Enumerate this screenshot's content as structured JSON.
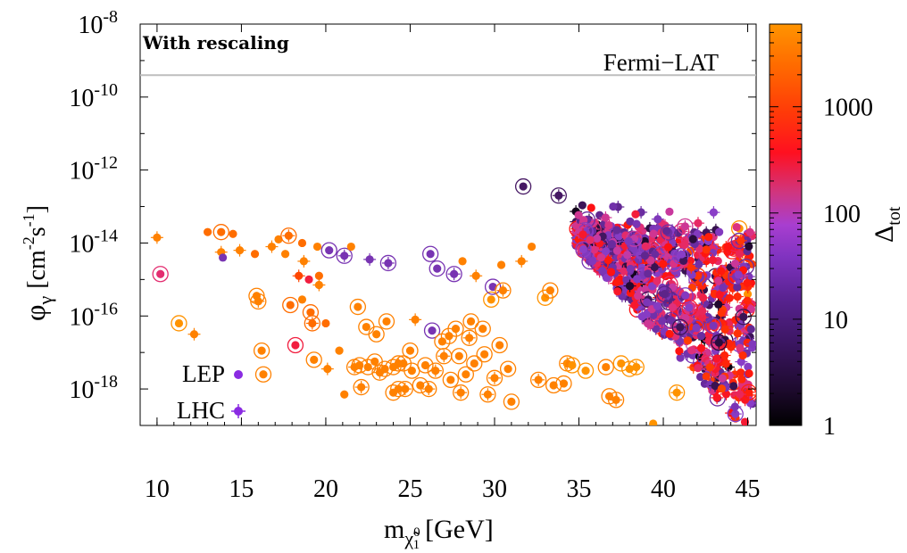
{
  "chart_data": {
    "type": "scatter",
    "title": "",
    "xlabel": "m",
    "xlabel_sub": "χ̃",
    "xlabel_sub_sup": "0",
    "xlabel_sub_sub": "1",
    "xlabel_unit": "[GeV]",
    "ylabel_phi": "φ",
    "ylabel_gamma": "γ",
    "ylabel_unit_open": "[cm",
    "ylabel_exp1": "-2",
    "ylabel_mid": "s",
    "ylabel_exp2": "-1",
    "ylabel_unit_close": "]",
    "xlim": [
      9,
      45.5
    ],
    "ylim_log10": [
      -19,
      -8
    ],
    "x_ticks": [
      "10",
      "15",
      "20",
      "25",
      "30",
      "35",
      "40",
      "45"
    ],
    "x_tick_values": [
      10,
      15,
      20,
      25,
      30,
      35,
      40,
      45
    ],
    "y_tick_base": "10",
    "y_tick_exps": [
      "-8",
      "-10",
      "-12",
      "-14",
      "-16",
      "-18"
    ],
    "y_tick_values": [
      -8,
      -10,
      -12,
      -14,
      -16,
      -18
    ],
    "annotation": "With rescaling",
    "reference_line": {
      "label": "Fermi−LAT",
      "log10_value": -9.4,
      "color": "#bbbbbb"
    },
    "legend": {
      "placement": "bottom-left",
      "entries": [
        {
          "label": "LEP",
          "marker": "dot"
        },
        {
          "label": "LHC",
          "marker": "dot-cross"
        }
      ]
    },
    "colorbar": {
      "label_base": "Δ",
      "label_sub": "tot",
      "scale": "log",
      "range": [
        1,
        6000
      ],
      "ticks": [
        "1",
        "10",
        "100",
        "1000"
      ],
      "tick_values": [
        1,
        10,
        100,
        1000
      ],
      "palette": [
        "#000000",
        "#2a0c3c",
        "#4b1a6b",
        "#6a2ca0",
        "#8a3ec8",
        "#b040c0",
        "#e0307a",
        "#ff1010",
        "#ff4a00",
        "#ff7a00",
        "#ff9a00"
      ]
    },
    "series": [
      {
        "name": "light-mass sparse points (orange)",
        "points": [
          [
            10.0,
            -13.85,
            3000,
            "lep",
            false
          ],
          [
            10.2,
            -14.85,
            200,
            "lep",
            true
          ],
          [
            11.3,
            -16.2,
            5000,
            "lep",
            true
          ],
          [
            12.2,
            -16.5,
            3000,
            "lep",
            false
          ],
          [
            13.0,
            -13.7,
            2000,
            "lep",
            false
          ],
          [
            13.8,
            -13.7,
            2000,
            "lep",
            true
          ],
          [
            13.8,
            -14.25,
            3000,
            "lep",
            false
          ],
          [
            13.9,
            -14.4,
            20,
            "lep",
            false
          ],
          [
            14.5,
            -13.75,
            2000,
            "lep",
            false
          ],
          [
            14.9,
            -14.2,
            3000,
            "lep",
            false
          ],
          [
            15.8,
            -14.3,
            2000,
            "lep",
            false
          ],
          [
            15.9,
            -15.45,
            3000,
            "lep",
            true
          ],
          [
            16.0,
            -15.6,
            3000,
            "lep",
            true
          ],
          [
            16.2,
            -16.95,
            3000,
            "lep",
            true
          ],
          [
            16.3,
            -17.6,
            3000,
            "lep",
            true
          ],
          [
            16.8,
            -14.1,
            3000,
            "lep",
            false
          ],
          [
            17.2,
            -13.9,
            3000,
            "lep",
            false
          ],
          [
            17.6,
            -14.3,
            3000,
            "lep",
            false
          ],
          [
            17.8,
            -13.8,
            2000,
            "lep",
            true
          ],
          [
            17.9,
            -15.7,
            2000,
            "lep",
            true
          ],
          [
            18.2,
            -16.8,
            300,
            "lep",
            true
          ],
          [
            18.4,
            -14.9,
            1000,
            "lep",
            false
          ],
          [
            18.6,
            -15.55,
            3000,
            "lep",
            false
          ],
          [
            18.6,
            -14.0,
            2000,
            "lep",
            false
          ],
          [
            18.7,
            -14.5,
            3000,
            "lep",
            false
          ],
          [
            19.0,
            -15.0,
            300,
            "lep",
            false
          ],
          [
            19.1,
            -15.9,
            2000,
            "lep",
            true
          ],
          [
            19.2,
            -16.2,
            2000,
            "lep",
            true
          ],
          [
            19.3,
            -17.2,
            3000,
            "lep",
            true
          ],
          [
            19.5,
            -14.1,
            3000,
            "lep",
            false
          ],
          [
            19.6,
            -15.15,
            3000,
            "lep",
            false
          ],
          [
            19.6,
            -14.9,
            2000,
            "lep",
            false
          ],
          [
            20.0,
            -16.2,
            2000,
            "lep",
            false
          ],
          [
            20.1,
            -17.45,
            3000,
            "lep",
            false
          ],
          [
            20.2,
            -14.2,
            20,
            "lep",
            true
          ],
          [
            20.8,
            -16.95,
            3000,
            "lep",
            false
          ],
          [
            21.1,
            -14.35,
            20,
            "lep",
            true
          ],
          [
            21.1,
            -18.15,
            3000,
            "lep",
            false
          ],
          [
            21.5,
            -14.1,
            3000,
            "lep",
            false
          ],
          [
            21.7,
            -17.4,
            3000,
            "lep",
            true
          ],
          [
            21.9,
            -15.75,
            3000,
            "lep",
            true
          ],
          [
            22.0,
            -17.35,
            3000,
            "lep",
            true
          ],
          [
            22.1,
            -17.95,
            3000,
            "lep",
            true
          ],
          [
            22.4,
            -16.3,
            3000,
            "lep",
            true
          ],
          [
            22.5,
            -17.4,
            3000,
            "lep",
            true
          ],
          [
            22.6,
            -14.45,
            20,
            "lep",
            false
          ],
          [
            22.9,
            -17.25,
            3000,
            "lep",
            true
          ],
          [
            23.0,
            -16.5,
            3000,
            "lep",
            true
          ],
          [
            23.2,
            -17.55,
            3000,
            "lep",
            true
          ],
          [
            23.5,
            -17.45,
            3000,
            "lep",
            true
          ],
          [
            23.6,
            -16.15,
            3000,
            "lep",
            true
          ],
          [
            23.7,
            -14.55,
            20,
            "lep",
            true
          ],
          [
            24.0,
            -17.4,
            3000,
            "lep",
            true
          ],
          [
            24.0,
            -18.1,
            3000,
            "lep",
            true
          ],
          [
            24.3,
            -17.3,
            3000,
            "lep",
            true
          ],
          [
            24.3,
            -18.0,
            3000,
            "lep",
            true
          ],
          [
            24.6,
            -17.3,
            3000,
            "lep",
            true
          ],
          [
            24.7,
            -18.0,
            3000,
            "lep",
            true
          ],
          [
            25.0,
            -16.95,
            3000,
            "lep",
            true
          ],
          [
            25.1,
            -17.5,
            3000,
            "lep",
            true
          ],
          [
            25.3,
            -16.1,
            3000,
            "lep",
            false
          ],
          [
            25.6,
            -17.9,
            3000,
            "lep",
            true
          ],
          [
            25.9,
            -17.35,
            3000,
            "lep",
            true
          ],
          [
            26.1,
            -18.0,
            3000,
            "lep",
            true
          ],
          [
            26.2,
            -14.3,
            20,
            "lep",
            true
          ],
          [
            26.3,
            -16.4,
            20,
            "lep",
            true
          ],
          [
            26.5,
            -17.5,
            3000,
            "lep",
            true
          ],
          [
            26.6,
            -14.7,
            20,
            "lep",
            true
          ],
          [
            26.9,
            -16.7,
            3000,
            "lep",
            true
          ],
          [
            27.0,
            -17.1,
            3000,
            "lep",
            true
          ],
          [
            27.3,
            -16.55,
            3000,
            "lep",
            true
          ],
          [
            27.4,
            -17.75,
            3000,
            "lep",
            true
          ],
          [
            27.6,
            -14.85,
            20,
            "lep",
            true
          ],
          [
            27.7,
            -16.35,
            3000,
            "lep",
            true
          ],
          [
            27.9,
            -17.1,
            3000,
            "lep",
            true
          ],
          [
            28.0,
            -18.1,
            3000,
            "lep",
            true
          ],
          [
            28.1,
            -14.5,
            3000,
            "lep",
            false
          ],
          [
            28.3,
            -17.6,
            3000,
            "lep",
            true
          ],
          [
            28.5,
            -16.6,
            3000,
            "lep",
            true
          ],
          [
            28.6,
            -16.15,
            3000,
            "lep",
            true
          ],
          [
            28.8,
            -17.3,
            3000,
            "lep",
            true
          ],
          [
            28.9,
            -14.9,
            3000,
            "lep",
            false
          ],
          [
            29.3,
            -16.35,
            3000,
            "lep",
            true
          ],
          [
            29.4,
            -17.05,
            3000,
            "lep",
            true
          ],
          [
            29.6,
            -18.15,
            3000,
            "lep",
            true
          ],
          [
            29.8,
            -15.55,
            5000,
            "lep",
            true
          ],
          [
            29.9,
            -15.2,
            20,
            "lep",
            true
          ],
          [
            30.0,
            -17.7,
            3000,
            "lep",
            true
          ],
          [
            30.3,
            -16.8,
            3000,
            "lep",
            true
          ],
          [
            30.4,
            -14.6,
            3000,
            "lep",
            false
          ],
          [
            30.5,
            -15.3,
            3000,
            "lep",
            true
          ],
          [
            30.8,
            -17.45,
            3000,
            "lep",
            true
          ],
          [
            31.0,
            -18.35,
            3000,
            "lep",
            true
          ],
          [
            31.6,
            -14.5,
            3000,
            "lep",
            false
          ],
          [
            31.7,
            -12.45,
            5,
            "lep",
            true
          ],
          [
            32.2,
            -14.1,
            3000,
            "lep",
            false
          ],
          [
            32.6,
            -17.75,
            3000,
            "lep",
            true
          ],
          [
            33.0,
            -15.5,
            5000,
            "lep",
            true
          ],
          [
            33.3,
            -15.3,
            3000,
            "lep",
            true
          ],
          [
            33.8,
            -12.7,
            5,
            "lep",
            true
          ],
          [
            33.5,
            -17.9,
            3000,
            "lep",
            true
          ],
          [
            34.1,
            -17.85,
            3000,
            "lep",
            true
          ],
          [
            34.3,
            -17.3,
            3000,
            "lep",
            true
          ],
          [
            34.6,
            -17.35,
            5000,
            "lep",
            true
          ],
          [
            35.4,
            -17.5,
            5000,
            "lep",
            true
          ],
          [
            35.7,
            -14.0,
            5000,
            "lep",
            true
          ],
          [
            36.6,
            -17.4,
            3000,
            "lep",
            true
          ],
          [
            36.8,
            -18.2,
            3000,
            "lep",
            true
          ],
          [
            37.2,
            -18.3,
            3000,
            "lep",
            true
          ],
          [
            37.5,
            -17.3,
            5000,
            "lep",
            true
          ],
          [
            38.0,
            -17.45,
            5000,
            "lep",
            true
          ],
          [
            38.4,
            -17.4,
            5000,
            "lep",
            true
          ],
          [
            39.4,
            -18.95,
            5000,
            "lep",
            false
          ],
          [
            40.0,
            -13.85,
            20,
            "lep",
            true
          ],
          [
            40.8,
            -18.1,
            5000,
            "lep",
            true
          ],
          [
            44.5,
            -13.6,
            5000,
            "lep",
            true
          ],
          [
            45.0,
            -15.4,
            5000,
            "lep",
            false
          ],
          [
            44.7,
            -14.25,
            3000,
            "lep",
            true
          ]
        ]
      },
      {
        "name": "band",
        "generator": "dense-triangle",
        "x_range": [
          34.8,
          45.3
        ],
        "count": 950
      }
    ]
  }
}
